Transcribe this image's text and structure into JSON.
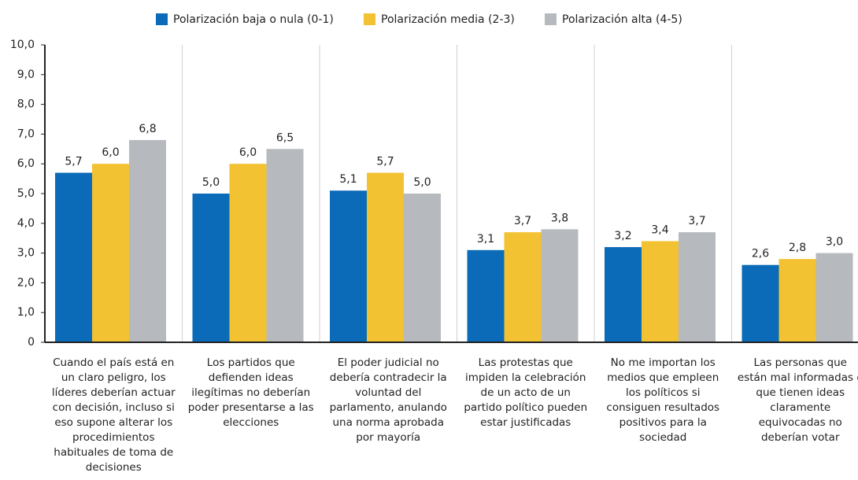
{
  "chart_data": {
    "type": "bar",
    "categories": [
      "Cuando el país está en un claro peligro, los líderes deberían actuar con decisión, incluso si eso supone alterar los procedimientos habituales de toma de decisiones",
      "Los partidos que defienden ideas ilegítimas no deberían poder presentarse a las elecciones",
      "El poder judicial no debería contradecir la voluntad del parlamento, anulando una norma aprobada por mayoría",
      "Las protestas que impiden la celebración de un acto de un partido político pueden estar justificadas",
      "No me importan los medios que empleen los políticos si consiguen resultados positivos para la sociedad",
      "Las personas que están mal informadas o que tienen ideas claramente equivocadas no deberían votar"
    ],
    "series": [
      {
        "name": "Polarización baja o nula (0-1)",
        "color": "#0b6bb8",
        "values": [
          5.7,
          5.0,
          5.1,
          3.1,
          3.2,
          2.6
        ],
        "value_labels": [
          "5,7",
          "5,0",
          "5,1",
          "3,1",
          "3,2",
          "2,6"
        ]
      },
      {
        "name": "Polarización media (2-3)",
        "color": "#f2c232",
        "values": [
          6.0,
          6.0,
          5.7,
          3.7,
          3.4,
          2.8
        ],
        "value_labels": [
          "6,0",
          "6,0",
          "5,7",
          "3,7",
          "3,4",
          "2,8"
        ]
      },
      {
        "name": "Polarización alta (4-5)",
        "color": "#b6babf",
        "values": [
          6.8,
          6.5,
          5.0,
          3.8,
          3.7,
          3.0
        ],
        "value_labels": [
          "6,8",
          "6,5",
          "5,0",
          "3,8",
          "3,7",
          "3,0"
        ]
      }
    ],
    "ylim": [
      0,
      10
    ],
    "yticks": [
      0,
      {
        "value": 1,
        "label": "1,0"
      },
      {
        "value": 2,
        "label": "2,0"
      },
      {
        "value": 3,
        "label": "3,0"
      },
      {
        "value": 4,
        "label": "4,0"
      },
      {
        "value": 5,
        "label": "5,0"
      },
      {
        "value": 6,
        "label": "6,0"
      },
      {
        "value": 7,
        "label": "7,0"
      },
      {
        "value": 8,
        "label": "8,0"
      },
      {
        "value": 9,
        "label": "9,0"
      },
      {
        "value": 10,
        "label": "10,0"
      }
    ],
    "legend": "top"
  }
}
